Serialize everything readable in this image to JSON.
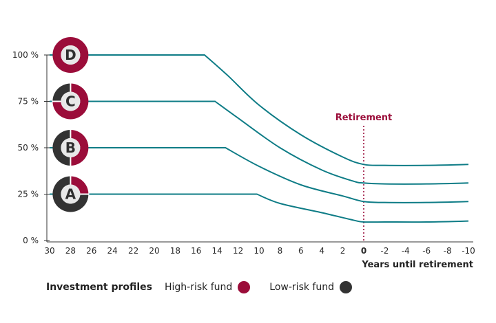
{
  "chart_data": {
    "type": "line",
    "title": "",
    "xlabel": "Years until retirement",
    "ylabel": "",
    "xlim": [
      30,
      -10
    ],
    "ylim": [
      0,
      100
    ],
    "x_ticks": [
      30,
      28,
      26,
      24,
      22,
      20,
      18,
      16,
      14,
      12,
      10,
      8,
      6,
      4,
      2,
      0,
      -2,
      -4,
      -6,
      -8,
      -10
    ],
    "y_ticks": [
      {
        "value": 0,
        "label": "0 %"
      },
      {
        "value": 25,
        "label": "25 %"
      },
      {
        "value": 50,
        "label": "50 %"
      },
      {
        "value": 75,
        "label": "75 %"
      },
      {
        "value": 100,
        "label": "100 %"
      }
    ],
    "series": [
      {
        "name": "D",
        "high_risk_share": 100,
        "points": [
          [
            30,
            100
          ],
          [
            15.2,
            100
          ],
          [
            13,
            89
          ],
          [
            10,
            73
          ],
          [
            6,
            57
          ],
          [
            2,
            45
          ],
          [
            0,
            41
          ],
          [
            -2,
            40.5
          ],
          [
            -6,
            40.5
          ],
          [
            -10,
            41
          ]
        ]
      },
      {
        "name": "C",
        "high_risk_share": 75,
        "points": [
          [
            30,
            75
          ],
          [
            14.2,
            75
          ],
          [
            12,
            66
          ],
          [
            8,
            50
          ],
          [
            4,
            38
          ],
          [
            1,
            32
          ],
          [
            0,
            31
          ],
          [
            -2,
            30.5
          ],
          [
            -6,
            30.5
          ],
          [
            -10,
            31
          ]
        ]
      },
      {
        "name": "B",
        "high_risk_share": 50,
        "points": [
          [
            30,
            50
          ],
          [
            13.2,
            50
          ],
          [
            10,
            40
          ],
          [
            6,
            30
          ],
          [
            2,
            24
          ],
          [
            0,
            21
          ],
          [
            -2,
            20.5
          ],
          [
            -6,
            20.5
          ],
          [
            -10,
            21
          ]
        ]
      },
      {
        "name": "A",
        "high_risk_share": 25,
        "points": [
          [
            30,
            25
          ],
          [
            10.2,
            25
          ],
          [
            8,
            20
          ],
          [
            4,
            15
          ],
          [
            1,
            11
          ],
          [
            0,
            10
          ],
          [
            -2,
            10
          ],
          [
            -6,
            10
          ],
          [
            -10,
            10.5
          ]
        ]
      }
    ],
    "annotations": [
      {
        "x": 0,
        "label": "Retirement"
      }
    ],
    "legend": {
      "title": "Investment profiles",
      "items": [
        {
          "label": "High-risk fund",
          "color": "#9b0d3a"
        },
        {
          "label": "Low-risk fund",
          "color": "#333333"
        }
      ]
    },
    "colors": {
      "line": "#0e7c86",
      "high_risk": "#9b0d3a",
      "low_risk": "#333333",
      "retirement": "#9b0d3a",
      "center": "#e8e8e8"
    }
  }
}
